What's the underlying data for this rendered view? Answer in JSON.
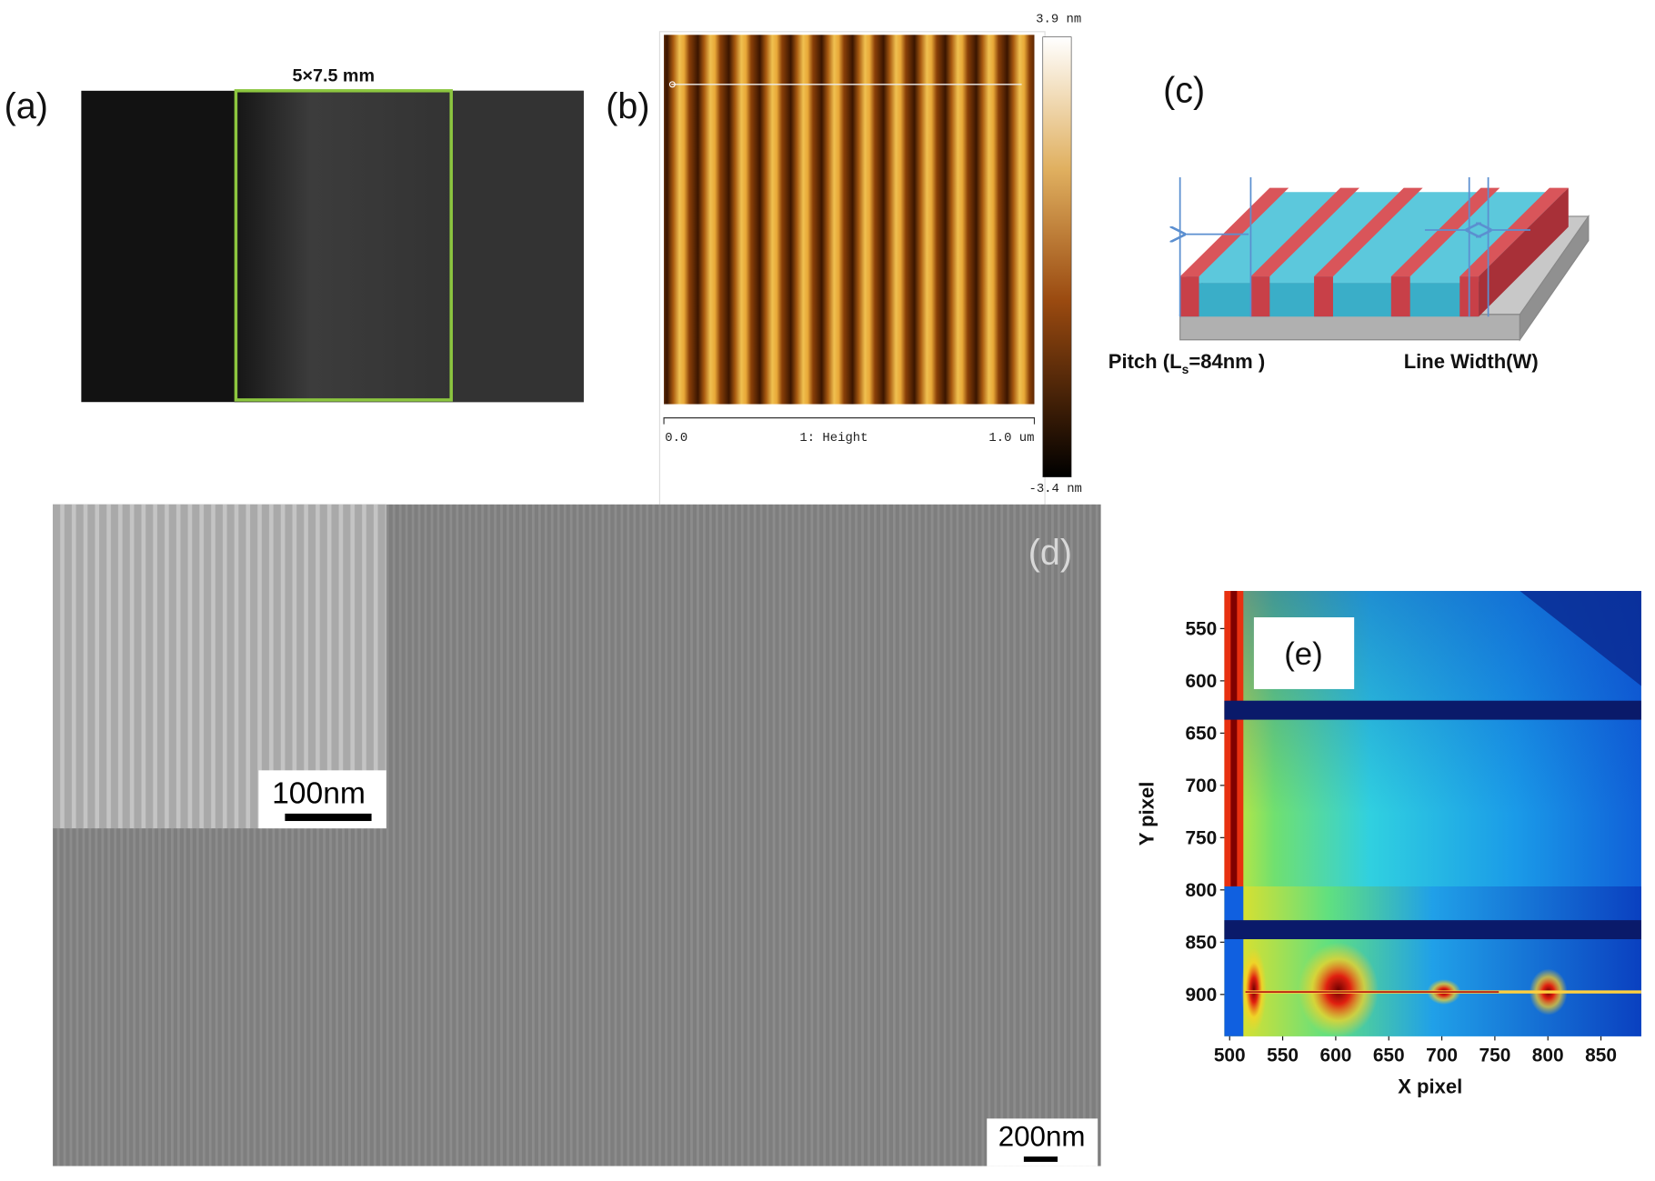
{
  "panels": {
    "a": {
      "label": "(a)",
      "caption": "5×7.5 mm"
    },
    "b": {
      "label": "(b)",
      "colorbar_max": "3.9 nm",
      "colorbar_min": "-3.4 nm",
      "scale_start": "0.0",
      "scale_title": "1: Height",
      "scale_end": "1.0 um"
    },
    "c": {
      "label": "(c)",
      "pitch_label": {
        "text": "Pitch (L",
        "subscript": "s",
        "text_after": "=84nm )"
      },
      "width_label": "Line Width(W)"
    },
    "d": {
      "label": "(d)",
      "inset_scale_bar": "100nm",
      "scale_bar": "200nm"
    },
    "e": {
      "label": "(e)",
      "xlabel": "X pixel",
      "ylabel": "Y pixel",
      "xlim": [
        495,
        888
      ],
      "ylim": [
        514,
        940
      ],
      "y_inverted": true,
      "xticks": [
        500,
        550,
        600,
        650,
        700,
        750,
        800,
        850
      ],
      "yticks": [
        550,
        600,
        650,
        700,
        750,
        800,
        850,
        900
      ]
    }
  }
}
